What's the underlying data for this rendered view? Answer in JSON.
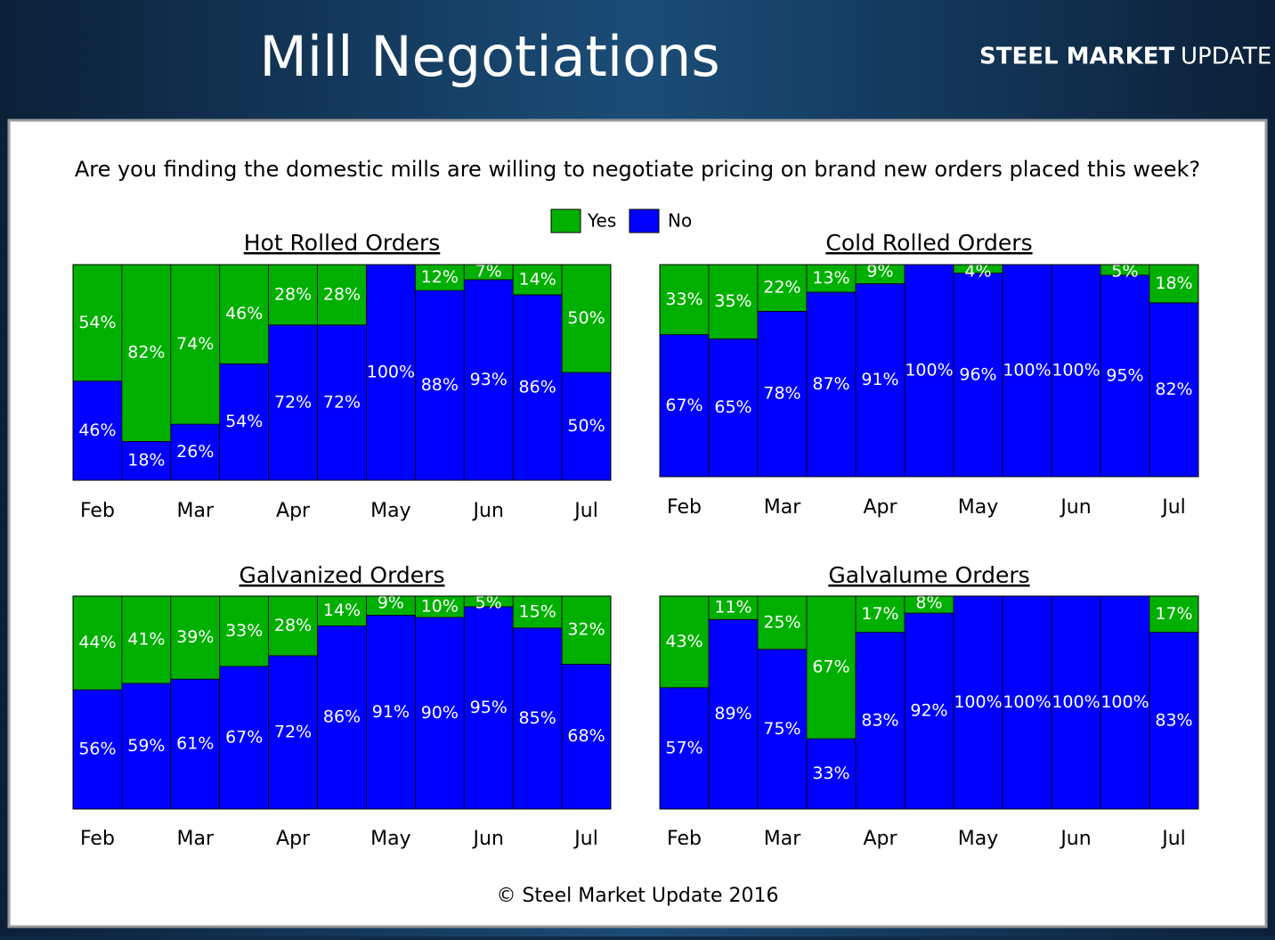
{
  "header": {
    "title": "Mill Negotiations",
    "logo_bold": "STEEL MARKET",
    "logo_light": "UPDATE"
  },
  "question": "Are you finding the domestic mills are willing to negotiate pricing on brand new orders placed this week?",
  "footer": "© Steel Market Update 2016",
  "chart_data": [
    {
      "type": "stacked_bar",
      "title": "Hot Rolled Orders",
      "ylim": [
        0,
        100
      ],
      "categories": [
        "Feb",
        null,
        "Mar",
        null,
        "Apr",
        null,
        "May",
        null,
        "Jun",
        null,
        "Jul"
      ],
      "series": [
        {
          "name": "No",
          "color": "#0000ff",
          "values": [
            46,
            18,
            26,
            54,
            72,
            72,
            100,
            88,
            93,
            86,
            50
          ],
          "value_labels": [
            "46%",
            "18%",
            "26%",
            "54%",
            "72%",
            "72%",
            "100%",
            "88%",
            "93%",
            "86%",
            "50%"
          ]
        },
        {
          "name": "Yes",
          "color": "#00b000",
          "values": [
            54,
            82,
            74,
            46,
            28,
            28,
            0,
            12,
            7,
            14,
            50
          ],
          "value_labels": [
            "54%",
            "82%",
            "74%",
            "46%",
            "28%",
            "28%",
            null,
            "12%",
            "7%",
            "14%",
            "50%"
          ]
        }
      ]
    },
    {
      "type": "stacked_bar",
      "title": "Cold Rolled Orders",
      "ylim": [
        0,
        100
      ],
      "categories": [
        "Feb",
        null,
        "Mar",
        null,
        "Apr",
        null,
        "May",
        null,
        "Jun",
        null,
        "Jul"
      ],
      "series": [
        {
          "color": "#0000ff",
          "values": [
            67,
            65,
            78,
            87,
            91,
            100,
            96,
            100,
            100,
            95,
            82
          ],
          "value_labels": [
            "67%",
            "65%",
            "78%",
            "87%",
            "91%",
            "100%",
            "96%",
            "100%",
            "100%",
            "95%",
            "82%"
          ]
        },
        {
          "color": "#00b000",
          "values": [
            33,
            35,
            22,
            13,
            9,
            0,
            4,
            0,
            0,
            5,
            18
          ],
          "value_labels": [
            "33%",
            "35%",
            "22%",
            "13%",
            "9%",
            null,
            "4%",
            null,
            null,
            "5%",
            "18%"
          ]
        }
      ]
    },
    {
      "type": "stacked_bar",
      "title": "Galvanized Orders",
      "ylim": [
        0,
        100
      ],
      "categories": [
        "Feb",
        null,
        "Mar",
        null,
        "Apr",
        null,
        "May",
        null,
        "Jun",
        null,
        "Jul"
      ],
      "series": [
        {
          "color": "#0000ff",
          "values": [
            56,
            59,
            61,
            67,
            72,
            86,
            91,
            90,
            95,
            85,
            68
          ],
          "value_labels": [
            "56%",
            "59%",
            "61%",
            "67%",
            "72%",
            "86%",
            "91%",
            "90%",
            "95%",
            "85%",
            "68%"
          ]
        },
        {
          "color": "#00b000",
          "values": [
            44,
            41,
            39,
            33,
            28,
            14,
            9,
            10,
            5,
            15,
            32
          ],
          "value_labels": [
            "44%",
            "41%",
            "39%",
            "33%",
            "28%",
            "14%",
            "9%",
            "10%",
            "5%",
            "15%",
            "32%"
          ]
        }
      ]
    },
    {
      "type": "stacked_bar",
      "title": "Galvalume Orders",
      "ylim": [
        0,
        100
      ],
      "categories": [
        "Feb",
        null,
        "Mar",
        null,
        "Apr",
        null,
        "May",
        null,
        "Jun",
        null,
        "Jul"
      ],
      "series": [
        {
          "color": "#0000ff",
          "values": [
            57,
            89,
            75,
            33,
            83,
            92,
            100,
            100,
            100,
            100,
            83
          ],
          "value_labels": [
            "57%",
            "89%",
            "75%",
            "33%",
            "83%",
            "92%",
            "100%",
            "100%",
            "100%",
            "100%",
            "83%"
          ]
        },
        {
          "color": "#00b000",
          "values": [
            43,
            11,
            25,
            67,
            17,
            8,
            0,
            0,
            0,
            0,
            17
          ],
          "value_labels": [
            "43%",
            "11%",
            "25%",
            "67%",
            "17%",
            "8%",
            null,
            null,
            null,
            null,
            "17%"
          ]
        }
      ]
    }
  ]
}
